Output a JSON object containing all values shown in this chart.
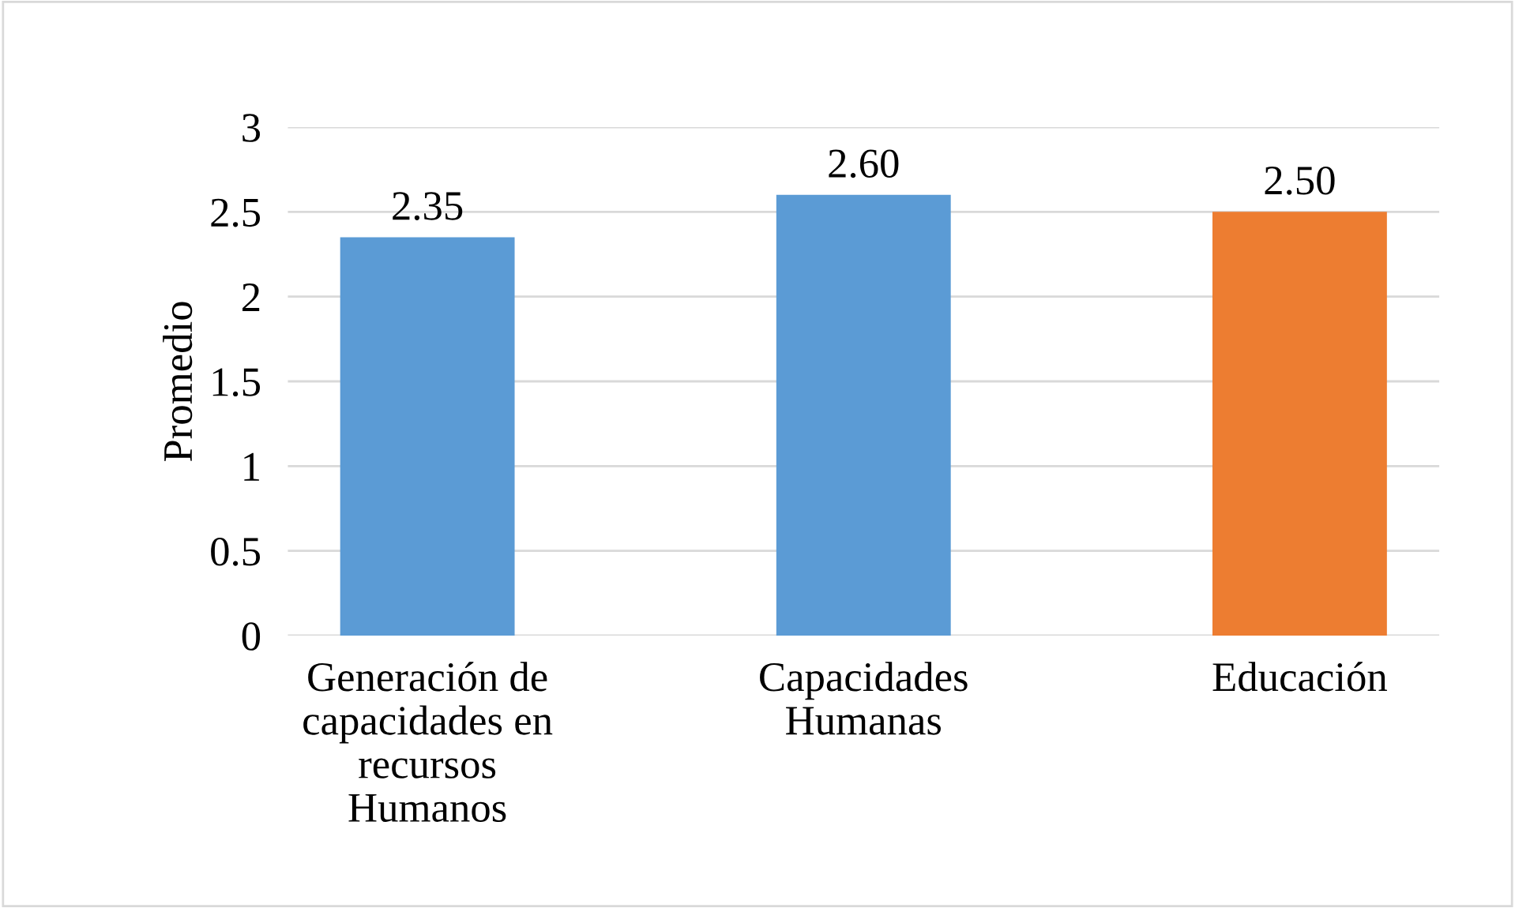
{
  "chart_data": {
    "type": "bar",
    "ylabel": "Promedio",
    "categories": [
      "Generación de\ncapacidades en\nrecursos\nHumanos",
      "Capacidades\nHumanas",
      "Educación"
    ],
    "values": [
      2.35,
      2.6,
      2.5
    ],
    "value_labels": [
      "2.35",
      "2.60",
      "2.50"
    ],
    "colors": [
      "#5b9bd5",
      "#5b9bd5",
      "#ed7d31"
    ],
    "ylim": [
      0,
      3
    ],
    "yticks": [
      0,
      0.5,
      1,
      1.5,
      2,
      2.5,
      3
    ],
    "grid": "y"
  }
}
